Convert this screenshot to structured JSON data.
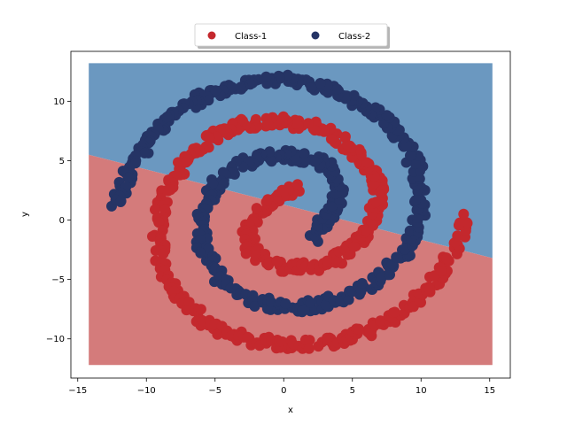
{
  "chart_data": {
    "type": "scatter",
    "title": "",
    "xlabel": "x",
    "ylabel": "y",
    "xlim": [
      -15.5,
      16.5
    ],
    "ylim": [
      -13.3,
      14.2
    ],
    "xticks": [
      -15,
      -10,
      -5,
      0,
      5,
      10,
      15
    ],
    "yticks": [
      -10,
      -5,
      0,
      5,
      10
    ],
    "grid": false,
    "legend": {
      "placement": "top-center",
      "columns": 2
    },
    "decision_regions": {
      "x_range": [
        -14.2,
        15.2
      ],
      "y_range": [
        -12.2,
        13.2
      ],
      "boundary_line": {
        "x": [
          -14.2,
          15.2
        ],
        "y": [
          5.5,
          -3.2
        ]
      },
      "above_class": "Class-2",
      "below_class": "Class-1",
      "colors": {
        "Class-1": "#d47b7b",
        "Class-2": "#6b98c0"
      }
    },
    "series": [
      {
        "name": "Class-1",
        "color": "#c4282d",
        "spiral_path": [
          [
            1.0,
            2.6
          ],
          [
            -0.5,
            2.0
          ],
          [
            -1.9,
            0.6
          ],
          [
            -2.6,
            -1.0
          ],
          [
            -2.4,
            -2.6
          ],
          [
            -1.0,
            -3.6
          ],
          [
            0.7,
            -4.1
          ],
          [
            2.6,
            -3.8
          ],
          [
            4.3,
            -3.0
          ],
          [
            5.7,
            -1.6
          ],
          [
            6.5,
            0.0
          ],
          [
            6.9,
            1.6
          ],
          [
            6.8,
            3.3
          ],
          [
            6.0,
            4.9
          ],
          [
            4.8,
            6.3
          ],
          [
            3.2,
            7.4
          ],
          [
            1.3,
            8.1
          ],
          [
            -0.8,
            8.4
          ],
          [
            -2.8,
            8.1
          ],
          [
            -4.6,
            7.4
          ],
          [
            -6.1,
            6.2
          ],
          [
            -7.4,
            4.7
          ],
          [
            -8.4,
            2.9
          ],
          [
            -9.0,
            0.9
          ],
          [
            -9.2,
            -1.2
          ],
          [
            -8.9,
            -3.4
          ],
          [
            -8.2,
            -5.4
          ],
          [
            -7.1,
            -7.0
          ],
          [
            -5.6,
            -8.5
          ],
          [
            -3.8,
            -9.6
          ],
          [
            -1.8,
            -10.2
          ],
          [
            0.4,
            -10.5
          ],
          [
            2.6,
            -10.4
          ],
          [
            4.8,
            -9.9
          ],
          [
            6.9,
            -9.0
          ],
          [
            8.8,
            -7.6
          ],
          [
            10.4,
            -6.0
          ],
          [
            11.7,
            -4.2
          ],
          [
            12.6,
            -2.2
          ],
          [
            13.2,
            0.5
          ]
        ]
      },
      {
        "name": "Class-2",
        "color": "#253465",
        "spiral_path": [
          [
            2.1,
            -1.5
          ],
          [
            2.8,
            -0.2
          ],
          [
            3.9,
            1.3
          ],
          [
            4.0,
            3.0
          ],
          [
            3.3,
            4.4
          ],
          [
            2.0,
            5.2
          ],
          [
            0.3,
            5.5
          ],
          [
            -1.6,
            5.3
          ],
          [
            -3.4,
            4.5
          ],
          [
            -4.9,
            3.1
          ],
          [
            -5.8,
            1.4
          ],
          [
            -6.1,
            -0.5
          ],
          [
            -5.9,
            -2.3
          ],
          [
            -5.2,
            -4.0
          ],
          [
            -4.0,
            -5.5
          ],
          [
            -2.4,
            -6.6
          ],
          [
            -0.6,
            -7.2
          ],
          [
            1.4,
            -7.3
          ],
          [
            3.4,
            -6.9
          ],
          [
            5.3,
            -6.1
          ],
          [
            7.0,
            -4.9
          ],
          [
            8.4,
            -3.4
          ],
          [
            9.3,
            -1.6
          ],
          [
            9.9,
            0.4
          ],
          [
            10.0,
            2.4
          ],
          [
            9.7,
            4.4
          ],
          [
            8.9,
            6.3
          ],
          [
            7.7,
            8.0
          ],
          [
            6.1,
            9.5
          ],
          [
            4.3,
            10.6
          ],
          [
            2.2,
            11.4
          ],
          [
            0.0,
            11.8
          ],
          [
            -2.2,
            11.7
          ],
          [
            -4.4,
            11.1
          ],
          [
            -6.4,
            10.1
          ],
          [
            -8.2,
            8.6
          ],
          [
            -9.7,
            6.8
          ],
          [
            -10.8,
            5.0
          ],
          [
            -11.6,
            3.0
          ],
          [
            -12.3,
            1.0
          ]
        ]
      }
    ]
  }
}
